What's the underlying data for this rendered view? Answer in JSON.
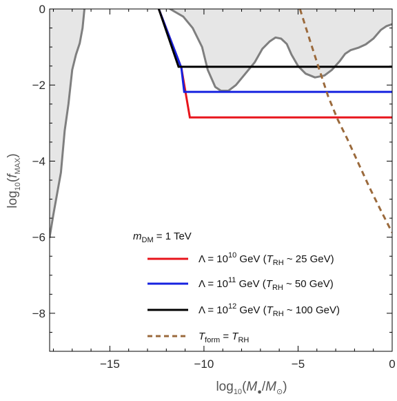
{
  "chart_data": {
    "type": "line",
    "xlabel": {
      "prefix": "log",
      "sub": "10",
      "open": "(",
      "num": "M",
      "num_sub": "●",
      "slash": "/",
      "den": "M",
      "den_sub": "⊙",
      "close": ")"
    },
    "ylabel": {
      "prefix": "log",
      "sub": "10",
      "open": "(",
      "var": "f",
      "var_sub": "MAX",
      "close": ")"
    },
    "xlim": [
      -18.2,
      0
    ],
    "ylim": [
      -9,
      0
    ],
    "x_ticks": [
      -15,
      -10,
      -5,
      0
    ],
    "x_tick_labels": [
      "−15",
      "−10",
      "−5",
      "0"
    ],
    "y_ticks": [
      0,
      -2,
      -4,
      -6,
      -8
    ],
    "y_tick_labels": [
      "0",
      "−2",
      "−4",
      "−6",
      "−8"
    ],
    "grid": false,
    "legend_placement": "bottom-right",
    "legend_header": {
      "var": "m",
      "sub": "DM",
      "eq": " = ",
      "value": "1 TeV"
    },
    "colors": {
      "red": "#e8141b",
      "blue": "#1622e0",
      "black": "#000000",
      "dashed": "#9b6a3c",
      "constraint_fill": "#e6e6e6",
      "constraint_line": "#7f7f7f"
    },
    "constraints": [
      {
        "id": "left",
        "points": [
          [
            -18.2,
            -6.0
          ],
          [
            -18.0,
            -5.4
          ],
          [
            -17.6,
            -4.3
          ],
          [
            -17.4,
            -3.2
          ],
          [
            -17.2,
            -2.5
          ],
          [
            -17.0,
            -1.6
          ],
          [
            -16.8,
            -1.2
          ],
          [
            -16.6,
            -0.9
          ],
          [
            -16.45,
            -0.5
          ],
          [
            -16.35,
            0
          ]
        ]
      },
      {
        "id": "right",
        "points": [
          [
            -11.8,
            0
          ],
          [
            -11.1,
            -0.2
          ],
          [
            -10.6,
            -0.5
          ],
          [
            -10.1,
            -1.0
          ],
          [
            -9.8,
            -1.6
          ],
          [
            -9.4,
            -2.05
          ],
          [
            -9.1,
            -2.15
          ],
          [
            -8.7,
            -2.15
          ],
          [
            -8.3,
            -2.0
          ],
          [
            -7.8,
            -1.7
          ],
          [
            -7.3,
            -1.4
          ],
          [
            -6.9,
            -1.05
          ],
          [
            -6.5,
            -0.85
          ],
          [
            -6.2,
            -0.75
          ],
          [
            -5.9,
            -0.78
          ],
          [
            -5.6,
            -0.92
          ],
          [
            -5.35,
            -1.2
          ],
          [
            -5.0,
            -1.5
          ],
          [
            -4.6,
            -1.7
          ],
          [
            -4.1,
            -1.8
          ],
          [
            -3.6,
            -1.75
          ],
          [
            -3.2,
            -1.6
          ],
          [
            -2.8,
            -1.38
          ],
          [
            -2.5,
            -1.18
          ],
          [
            -2.2,
            -1.08
          ],
          [
            -1.8,
            -1.02
          ],
          [
            -1.4,
            -0.93
          ],
          [
            -1.0,
            -0.78
          ],
          [
            -0.6,
            -0.55
          ],
          [
            -0.3,
            -0.45
          ],
          [
            0,
            -0.4
          ]
        ]
      }
    ],
    "series": [
      {
        "label": {
          "greek": "Λ",
          "eq": " = 10",
          "exp": "10",
          "unit": " GeV (",
          "var": "T",
          "sub": "RH",
          "rest": " ~ 25 GeV)"
        },
        "color": "#e8141b",
        "style": "solid",
        "points": [
          [
            -12.4,
            0
          ],
          [
            -11.2,
            -1.55
          ],
          [
            -10.75,
            -2.85
          ],
          [
            0,
            -2.85
          ]
        ]
      },
      {
        "label": {
          "greek": "Λ",
          "eq": " = 10",
          "exp": "11",
          "unit": " GeV (",
          "var": "T",
          "sub": "RH",
          "rest": " ~ 50 GeV)"
        },
        "color": "#1622e0",
        "style": "solid",
        "points": [
          [
            -12.4,
            0
          ],
          [
            -11.2,
            -1.55
          ],
          [
            -11.05,
            -2.18
          ],
          [
            0,
            -2.18
          ]
        ]
      },
      {
        "label": {
          "greek": "Λ",
          "eq": " = 10",
          "exp": "12",
          "unit": " GeV (",
          "var": "T",
          "sub": "RH",
          "rest": " ~ 100 GeV)"
        },
        "color": "#000000",
        "style": "solid",
        "points": [
          [
            -12.4,
            0
          ],
          [
            -11.35,
            -1.52
          ],
          [
            0,
            -1.52
          ]
        ]
      },
      {
        "label": {
          "var": "T",
          "sub": "form",
          "eq": " = ",
          "var2": "T",
          "sub2": "RH"
        },
        "color": "#9b6a3c",
        "style": "dashed",
        "points": [
          [
            -4.9,
            0
          ],
          [
            -4.4,
            -0.78
          ],
          [
            -3.9,
            -1.55
          ],
          [
            -3.4,
            -2.3
          ],
          [
            -2.9,
            -2.9
          ],
          [
            -2.4,
            -3.4
          ],
          [
            -1.8,
            -4.05
          ],
          [
            -1.2,
            -4.7
          ],
          [
            -0.6,
            -5.3
          ],
          [
            0,
            -5.88
          ]
        ]
      }
    ]
  }
}
